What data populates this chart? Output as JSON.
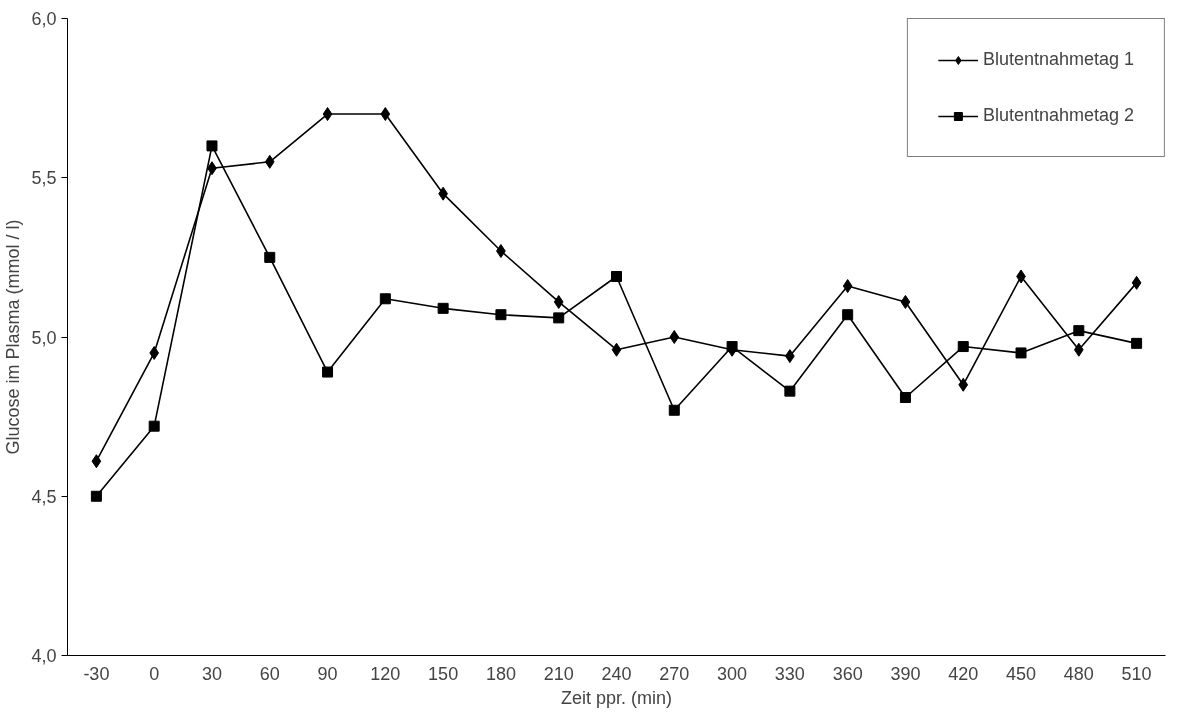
{
  "chart_data": {
    "type": "line",
    "xlabel": "Zeit ppr. (min)",
    "ylabel": "Glucose im Plasma (mmol / l)",
    "categories": [
      "-30",
      "0",
      "30",
      "60",
      "90",
      "120",
      "150",
      "180",
      "210",
      "240",
      "270",
      "300",
      "330",
      "360",
      "390",
      "420",
      "450",
      "480",
      "510"
    ],
    "series": [
      {
        "name": "Blutentnahmetag 1",
        "color": "#000000",
        "marker": "diamond",
        "values": [
          4.61,
          4.95,
          5.53,
          5.55,
          5.7,
          5.7,
          5.45,
          5.27,
          5.11,
          4.96,
          5.0,
          4.96,
          4.94,
          5.16,
          5.11,
          4.85,
          5.19,
          4.96,
          5.17
        ]
      },
      {
        "name": "Blutentnahmetag 2",
        "color": "#000000",
        "marker": "square",
        "values": [
          4.5,
          4.72,
          5.6,
          5.25,
          4.89,
          5.12,
          5.09,
          5.07,
          5.06,
          5.19,
          4.77,
          4.97,
          4.83,
          5.07,
          4.81,
          4.97,
          4.95,
          5.02,
          4.98
        ]
      }
    ],
    "ylim": [
      4.0,
      6.0
    ],
    "yticks": [
      {
        "value": 4.0,
        "label": "4,0"
      },
      {
        "value": 4.5,
        "label": "4,5"
      },
      {
        "value": 5.0,
        "label": "5,0"
      },
      {
        "value": 5.5,
        "label": "5,5"
      },
      {
        "value": 6.0,
        "label": "6,0"
      }
    ],
    "grid": false,
    "legend": "top right",
    "line_style": "solid"
  }
}
